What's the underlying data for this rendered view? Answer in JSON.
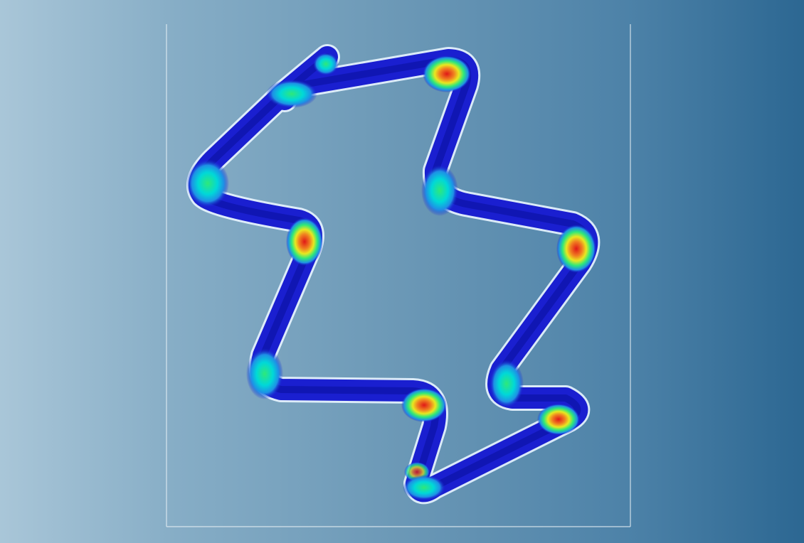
{
  "scene": {
    "description_role": "stent-strut-stress-contour",
    "colors": {
      "background_left": "#a9c6d8",
      "background_right": "#2c6792",
      "frame_line": "#e6eef3",
      "strut_base": "#1a1fd0",
      "contour_low": "#0033cc",
      "contour_mid_blue": "#1e90e6",
      "contour_cyan": "#00d8d8",
      "contour_green": "#2ee87a",
      "contour_yellow": "#e8e820",
      "contour_orange": "#f08020",
      "contour_high": "#e01818"
    },
    "legend_scale": [
      "blue",
      "cyan",
      "green",
      "yellow",
      "orange",
      "red"
    ]
  }
}
